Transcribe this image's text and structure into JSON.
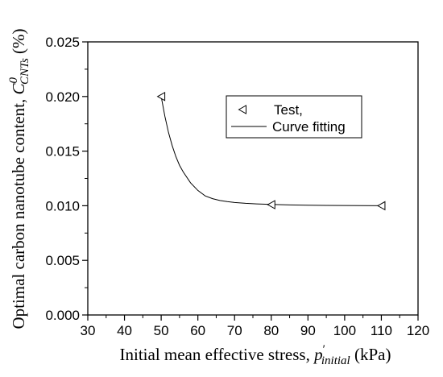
{
  "chart_data": {
    "type": "scatter",
    "title": "",
    "xlabel": {
      "main": "Initial mean effective stress, ",
      "symbol": "p",
      "prime": "′",
      "subscript": "initial",
      "unit": " (kPa)"
    },
    "ylabel": {
      "main": "Optimal carbon nanotube content, ",
      "symbol": "C",
      "superscript": "0",
      "subscript": "CNTs",
      "unit": " (%)"
    },
    "xlim": [
      30,
      120
    ],
    "ylim": [
      0.0,
      0.025
    ],
    "xticks": [
      30,
      40,
      50,
      60,
      70,
      80,
      90,
      100,
      110,
      120
    ],
    "xtick_labels": [
      "30",
      "40",
      "50",
      "60",
      "70",
      "80",
      "90",
      "100",
      "110",
      "120"
    ],
    "yticks": [
      0.0,
      0.005,
      0.01,
      0.015,
      0.02,
      0.025
    ],
    "ytick_labels": [
      "0.000",
      "0.005",
      "0.010",
      "0.015",
      "0.020",
      "0.025"
    ],
    "grid": false,
    "legend_position": "top-right",
    "series": [
      {
        "name": "Test,",
        "kind": "markers",
        "marker": "left-triangle",
        "x": [
          50,
          80,
          110
        ],
        "y": [
          0.02,
          0.0101,
          0.01
        ]
      },
      {
        "name": "Curve fitting",
        "kind": "line",
        "x": [
          50,
          51,
          52,
          53,
          54,
          55,
          56,
          58,
          60,
          62,
          64,
          66,
          68,
          70,
          73,
          76,
          80,
          85,
          90,
          95,
          100,
          105,
          110
        ],
        "y": [
          0.02,
          0.0182,
          0.0167,
          0.0155,
          0.0145,
          0.0137,
          0.0131,
          0.0121,
          0.0114,
          0.0109,
          0.01065,
          0.01048,
          0.01038,
          0.0103,
          0.01022,
          0.01017,
          0.01012,
          0.01008,
          0.01005,
          0.01003,
          0.01002,
          0.01001,
          0.01
        ]
      }
    ]
  }
}
